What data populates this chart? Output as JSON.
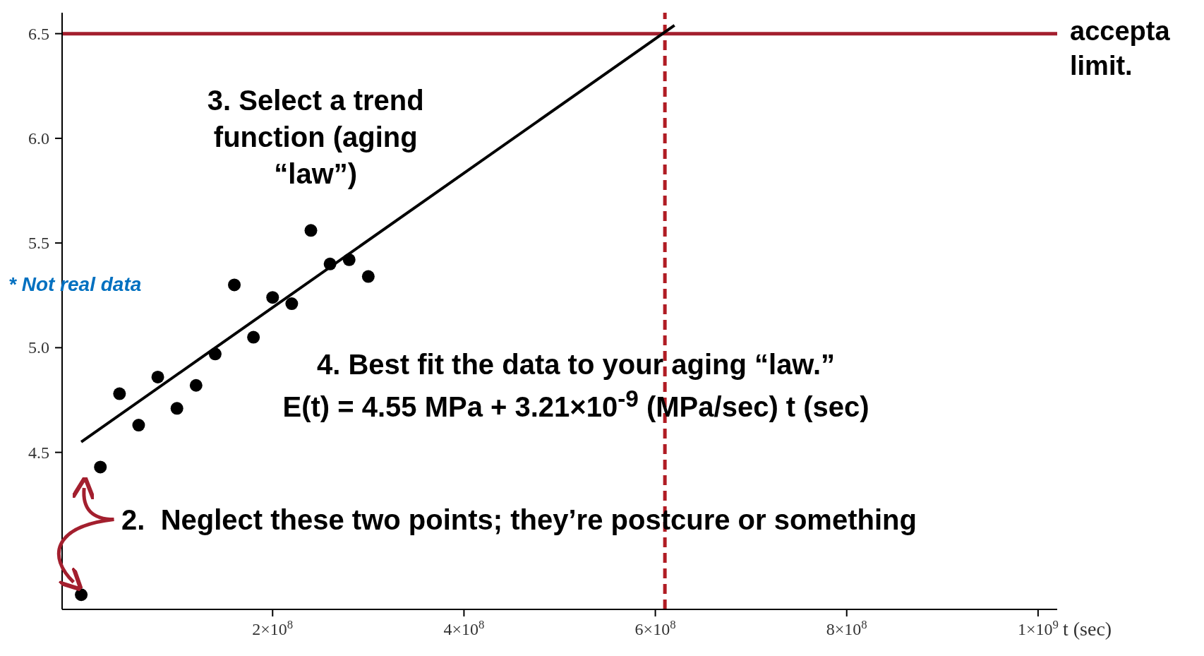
{
  "chart_data": {
    "type": "scatter",
    "xlabel": "t (sec)",
    "xlim": [
      -20000000,
      1020000000
    ],
    "ylim": [
      3.75,
      6.6
    ],
    "xticks": [
      {
        "value": 200000000,
        "label": "2×10$^{8}$"
      },
      {
        "value": 400000000,
        "label": "4×10$^{8}$"
      },
      {
        "value": 600000000,
        "label": "6×10$^{8}$"
      },
      {
        "value": 800000000,
        "label": "8×10$^{8}$"
      },
      {
        "value": 1000000000,
        "label": "1×10$^{9}$"
      }
    ],
    "yticks": [
      4.5,
      {
        "value": 5,
        "label": "5.0"
      },
      5.5,
      {
        "value": 6,
        "label": "6.0"
      },
      6.5
    ],
    "marker": "circle",
    "series": [
      {
        "color": "#000000",
        "x": [
          0,
          20000000,
          40000000,
          60000000,
          80000000,
          100000000,
          120000000,
          140000000,
          160000000,
          180000000,
          200000000,
          220000000,
          240000000,
          260000000,
          280000000,
          300000000
        ],
        "values": [
          3.82,
          4.43,
          4.78,
          4.63,
          4.86,
          4.71,
          4.82,
          4.97,
          5.3,
          5.05,
          5.24,
          5.21,
          5.56,
          5.4,
          5.42,
          5.34
        ]
      },
      {
        "type": "line",
        "marker": "none",
        "color": "#000000",
        "x": [
          0,
          620000000
        ],
        "values": [
          4.55,
          6.54
        ]
      }
    ],
    "ref_lines": [
      {
        "axis": "y",
        "value": 6.5,
        "label": "accepta limit.",
        "color": "#a31f2e",
        "line_style": "solid"
      },
      {
        "axis": "x",
        "value": 610000000,
        "color": "#b01c24",
        "line_style": "dashed"
      }
    ],
    "annotations": [
      "3. Select a trend function (aging “law”)",
      "* Not real data",
      "4. Best fit the data to your aging “law.”",
      "E(t) = 4.55 MPa + 3.21×10$^{-9}$ (MPa/sec) t (sec)",
      "2.  Neglect these two points; they’re postcure or something"
    ]
  }
}
